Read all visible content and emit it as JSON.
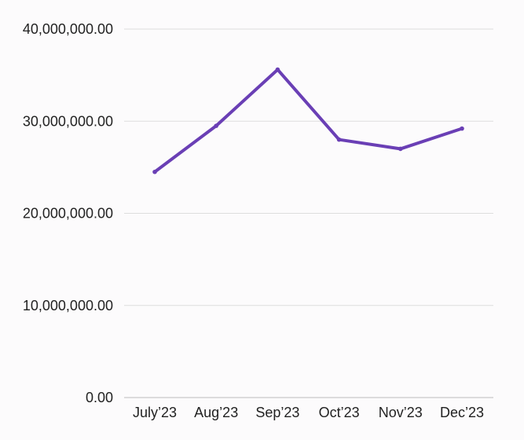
{
  "chart_data": {
    "type": "line",
    "title": "",
    "xlabel": "",
    "ylabel": "",
    "categories": [
      "July’23",
      "Aug’23",
      "Sep’23",
      "Oct’23",
      "Nov’23",
      "Dec’23"
    ],
    "series": [
      {
        "values": [
          24500000,
          29500000,
          35600000,
          28000000,
          27000000,
          29200000
        ],
        "color": "#6a3fb5"
      }
    ],
    "ylim": [
      0,
      40000000
    ],
    "yticks": [
      0,
      10000000,
      20000000,
      30000000,
      40000000
    ],
    "ytick_labels": [
      "0.00",
      "10,000,000.00",
      "20,000,000.00",
      "30,000,000.00",
      "40,000,000.00"
    ],
    "grid": true,
    "legend": "none",
    "colors": {
      "line": "#6a3fb5",
      "grid": "#dddddd",
      "axis": "#bbbbbb",
      "text": "#222222"
    }
  }
}
